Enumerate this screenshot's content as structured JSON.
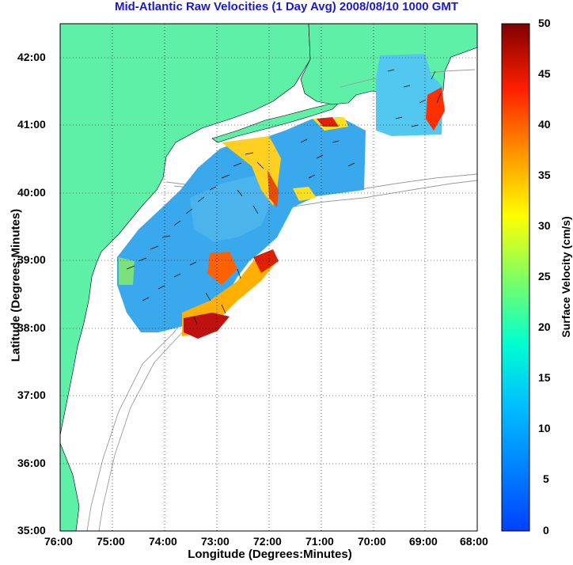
{
  "title": "Mid-Atlantic Raw Velocities (1 Day Avg) 2008/08/10 1000 GMT",
  "x_axis": {
    "label": "Longitude (Degrees:Minutes)",
    "ticks": [
      "76:00",
      "75:00",
      "74:00",
      "73:00",
      "72:00",
      "71:00",
      "70:00",
      "69:00",
      "68:00"
    ]
  },
  "y_axis": {
    "label": "Latitude (Degrees:Minutes)",
    "ticks": [
      "42:00",
      "41:00",
      "40:00",
      "39:00",
      "38:00",
      "37:00",
      "36:00",
      "35:00"
    ]
  },
  "colorbar": {
    "label": "Surface Velocity (cm/s)",
    "ticks": [
      "50",
      "45",
      "40",
      "35",
      "30",
      "25",
      "20",
      "15",
      "10",
      "5",
      "0"
    ],
    "range": [
      0,
      50
    ]
  },
  "map": {
    "lon_range": [
      -76,
      -68
    ],
    "lat_range": [
      35,
      42.5
    ],
    "land_color": "#5ff0a8",
    "grid": true,
    "colormap": "jet"
  }
}
